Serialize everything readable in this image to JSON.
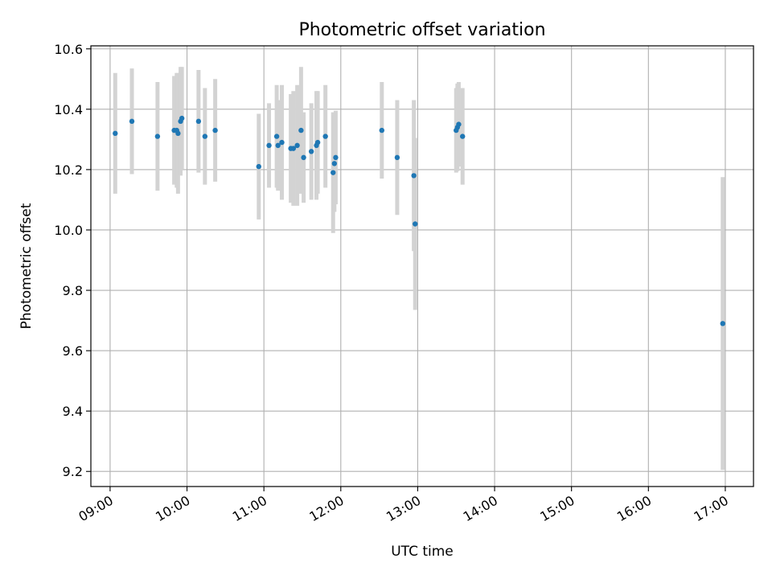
{
  "chart_data": {
    "type": "scatter",
    "title": "Photometric offset variation",
    "xlabel": "UTC time",
    "ylabel": "Photometric offset",
    "x_format": "time (HH:MM, UTC)",
    "xlim": [
      "08:45",
      "17:22"
    ],
    "ylim": [
      9.15,
      10.61
    ],
    "x_ticks": [
      "09:00",
      "10:00",
      "11:00",
      "12:00",
      "13:00",
      "14:00",
      "15:00",
      "16:00",
      "17:00"
    ],
    "y_ticks": [
      9.2,
      9.4,
      9.6,
      9.8,
      10.0,
      10.2,
      10.4,
      10.6
    ],
    "y_tick_labels": [
      "9.2",
      "9.4",
      "9.6",
      "9.8",
      "10.0",
      "10.2",
      "10.4",
      "10.6"
    ],
    "grid": true,
    "colors": {
      "points": "#1f77b4",
      "error_bars": "#d3d3d3",
      "grid": "#b0b0b0"
    },
    "series": [
      {
        "points": [
          {
            "x": "09:04",
            "y": 10.32,
            "err": 0.2
          },
          {
            "x": "09:17",
            "y": 10.36,
            "err": 0.175
          },
          {
            "x": "09:37",
            "y": 10.31,
            "err": 0.18
          },
          {
            "x": "09:50",
            "y": 10.33,
            "err": 0.18
          },
          {
            "x": "09:52",
            "y": 10.33,
            "err": 0.19
          },
          {
            "x": "09:53",
            "y": 10.32,
            "err": 0.2
          },
          {
            "x": "09:55",
            "y": 10.36,
            "err": 0.18
          },
          {
            "x": "09:56",
            "y": 10.37,
            "err": 0.17
          },
          {
            "x": "10:09",
            "y": 10.36,
            "err": 0.17
          },
          {
            "x": "10:14",
            "y": 10.31,
            "err": 0.16
          },
          {
            "x": "10:22",
            "y": 10.33,
            "err": 0.17
          },
          {
            "x": "10:56",
            "y": 10.21,
            "err": 0.175
          },
          {
            "x": "11:04",
            "y": 10.28,
            "err": 0.14
          },
          {
            "x": "11:10",
            "y": 10.31,
            "err": 0.17
          },
          {
            "x": "11:11",
            "y": 10.28,
            "err": 0.15
          },
          {
            "x": "11:14",
            "y": 10.29,
            "err": 0.19
          },
          {
            "x": "11:21",
            "y": 10.27,
            "err": 0.18
          },
          {
            "x": "11:23",
            "y": 10.27,
            "err": 0.19
          },
          {
            "x": "11:26",
            "y": 10.28,
            "err": 0.2
          },
          {
            "x": "11:29",
            "y": 10.33,
            "err": 0.21
          },
          {
            "x": "11:31",
            "y": 10.24,
            "err": 0.15
          },
          {
            "x": "11:37",
            "y": 10.26,
            "err": 0.16
          },
          {
            "x": "11:41",
            "y": 10.28,
            "err": 0.18
          },
          {
            "x": "11:42",
            "y": 10.29,
            "err": 0.17
          },
          {
            "x": "11:48",
            "y": 10.31,
            "err": 0.17
          },
          {
            "x": "11:54",
            "y": 10.19,
            "err": 0.2
          },
          {
            "x": "11:55",
            "y": 10.22,
            "err": 0.16
          },
          {
            "x": "11:56",
            "y": 10.24,
            "err": 0.155
          },
          {
            "x": "12:32",
            "y": 10.33,
            "err": 0.16
          },
          {
            "x": "12:44",
            "y": 10.24,
            "err": 0.19
          },
          {
            "x": "12:57",
            "y": 10.18,
            "err": 0.25
          },
          {
            "x": "12:58",
            "y": 10.02,
            "err": 0.285
          },
          {
            "x": "13:30",
            "y": 10.33,
            "err": 0.14
          },
          {
            "x": "13:31",
            "y": 10.34,
            "err": 0.145
          },
          {
            "x": "13:32",
            "y": 10.35,
            "err": 0.14
          },
          {
            "x": "13:35",
            "y": 10.31,
            "err": 0.16
          },
          {
            "x": "16:58",
            "y": 9.69,
            "err": 0.485
          }
        ]
      }
    ]
  }
}
